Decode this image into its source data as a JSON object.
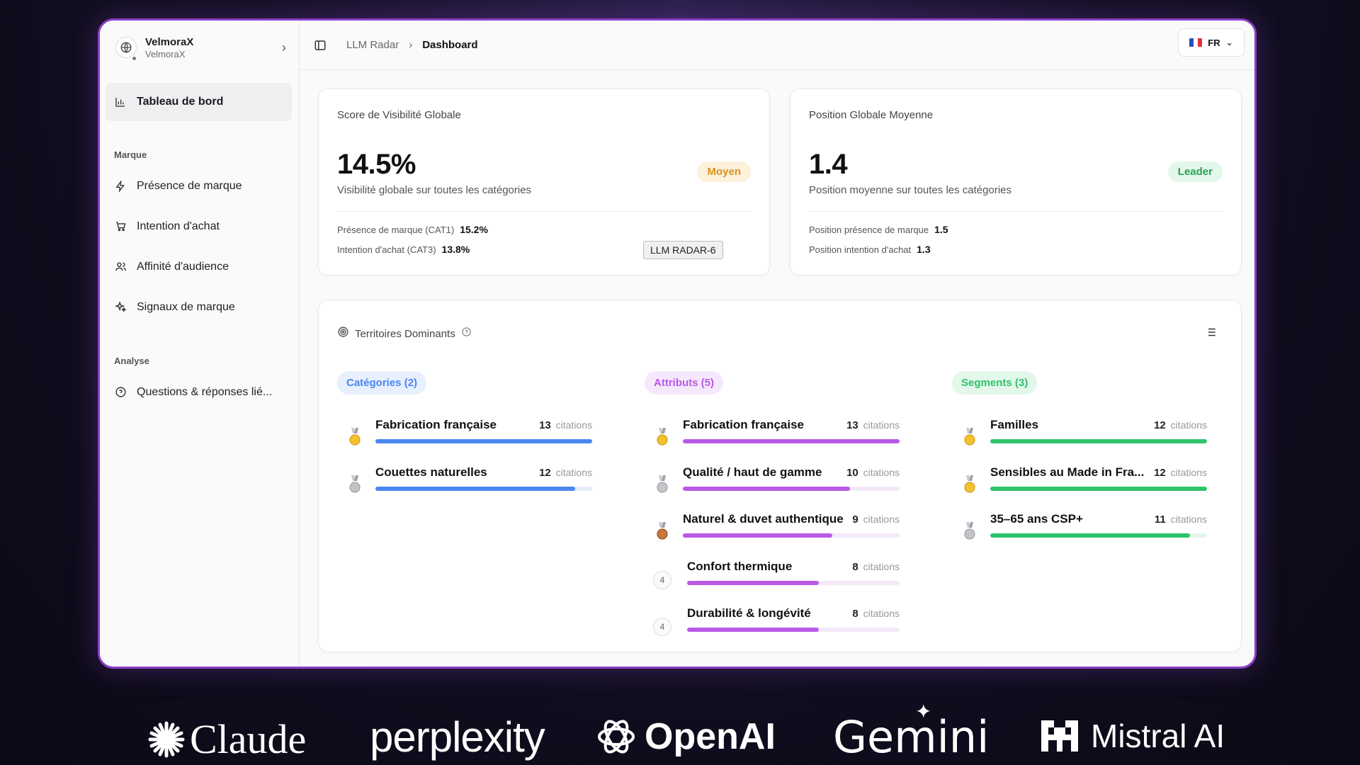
{
  "org": {
    "name": "VelmoraX",
    "sub": "VelmoraX"
  },
  "sidebar": {
    "active": "Tableau de bord",
    "section_brand": "Marque",
    "items": [
      "Présence de marque",
      "Intention d'achat",
      "Affinité d'audience",
      "Signaux de marque"
    ],
    "section_analysis": "Analyse",
    "analysis_items": [
      "Questions & réponses lié..."
    ]
  },
  "topbar": {
    "crumb1": "LLM Radar",
    "crumb2": "Dashboard",
    "lang": "FR"
  },
  "card1": {
    "title": "Score de Visibilité Globale",
    "value": "14.5%",
    "sub": "Visibilité globale sur toutes les catégories",
    "badge": "Moyen",
    "k1": "Présence de marque (CAT1)",
    "v1": "15.2%",
    "k2": "Intention d'achat (CAT3)",
    "v2": "13.8%",
    "tooltip": "LLM RADAR-6"
  },
  "card2": {
    "title": "Position Globale Moyenne",
    "value": "1.4",
    "sub": "Position moyenne sur toutes les catégories",
    "badge": "Leader",
    "k1": "Position présence de marque",
    "v1": "1.5",
    "k2": "Position intention d'achat",
    "v2": "1.3"
  },
  "territories": {
    "title": "Territoires Dominants",
    "unit": "citations",
    "columns": [
      {
        "label": "Catégories (2)",
        "color": "#4a86f0",
        "bg": "#e8effd",
        "track": "#e6edfb",
        "rows": [
          {
            "label": "Fabrication française",
            "count": "13",
            "rank": "gold",
            "fill": 1.0
          },
          {
            "label": "Couettes naturelles",
            "count": "12",
            "rank": "silver",
            "fill": 0.92
          }
        ]
      },
      {
        "label": "Attributs (5)",
        "color": "#b95ae6",
        "bg": "#f5e8fc",
        "track": "#f3e9f9",
        "rows": [
          {
            "label": "Fabrication française",
            "count": "13",
            "rank": "gold",
            "fill": 1.0
          },
          {
            "label": "Qualité / haut de gamme",
            "count": "10",
            "rank": "silver",
            "fill": 0.77
          },
          {
            "label": "Naturel & duvet authentique",
            "count": "9",
            "rank": "bronze",
            "fill": 0.69
          },
          {
            "label": "Confort thermique",
            "count": "8",
            "rank": "4",
            "fill": 0.62
          },
          {
            "label": "Durabilité & longévité",
            "count": "8",
            "rank": "4",
            "fill": 0.62
          }
        ]
      },
      {
        "label": "Segments (3)",
        "color": "#2fc36a",
        "bg": "#e3f7ea",
        "track": "#e2f6e9",
        "rows": [
          {
            "label": "Familles",
            "count": "12",
            "rank": "gold",
            "fill": 1.0
          },
          {
            "label": "Sensibles au Made in Fra...",
            "count": "12",
            "rank": "gold",
            "fill": 1.0
          },
          {
            "label": "35–65 ans CSP+",
            "count": "11",
            "rank": "silver",
            "fill": 0.92
          }
        ]
      }
    ]
  },
  "logos": [
    "Claude",
    "perplexity",
    "OpenAI",
    "Gemini",
    "Mistral AI"
  ]
}
